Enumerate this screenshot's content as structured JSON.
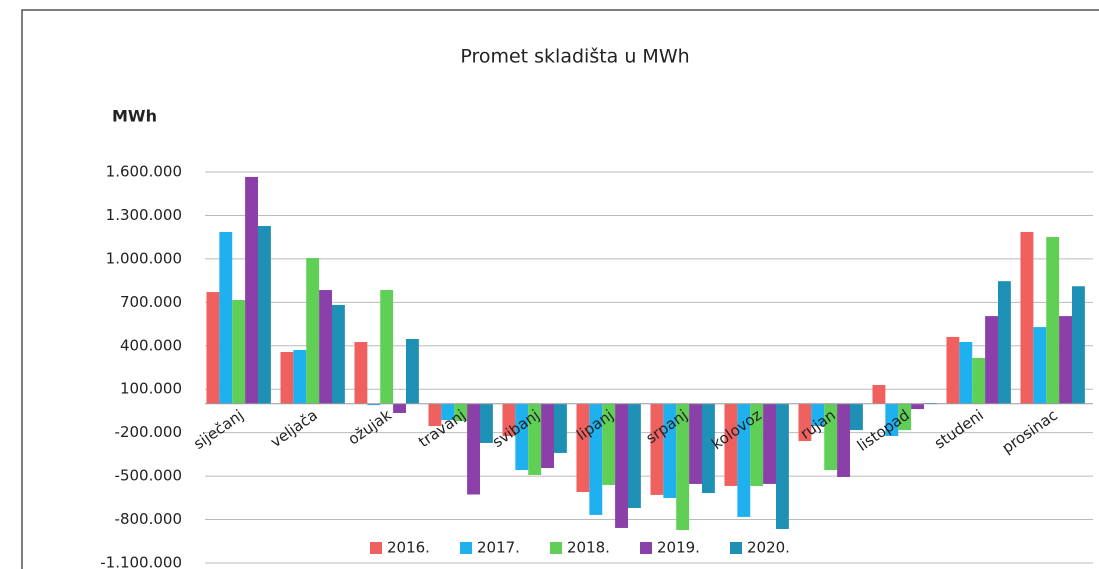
{
  "chart_data": {
    "type": "bar",
    "title": "Promet skladišta u MWh",
    "y_label": "MWh",
    "categories": [
      "siječanj",
      "veljača",
      "ožujak",
      "travanj",
      "svibanj",
      "lipanj",
      "srpanj",
      "kolovoz",
      "rujan",
      "listopad",
      "studeni",
      "prosinac"
    ],
    "series": [
      {
        "name": "2016.",
        "color": "#f0605e",
        "values": [
          771000,
          357000,
          426000,
          -154000,
          -223000,
          -610000,
          -630000,
          -568000,
          -258000,
          129000,
          461000,
          1186000
        ]
      },
      {
        "name": "2017.",
        "color": "#1fb0f0",
        "values": [
          1186000,
          371000,
          -10000,
          -113000,
          -458000,
          -768000,
          -651000,
          -782000,
          -154000,
          -223000,
          426000,
          529000
        ]
      },
      {
        "name": "2018.",
        "color": "#5fcf55",
        "values": [
          716000,
          1006000,
          785000,
          -120000,
          -492000,
          -561000,
          -872000,
          -568000,
          -458000,
          -182000,
          316000,
          1151000
        ]
      },
      {
        "name": "2019.",
        "color": "#8b3fa8",
        "values": [
          1566000,
          785000,
          -64000,
          -627000,
          -444000,
          -858000,
          -554000,
          -554000,
          -506000,
          -37000,
          605000,
          605000
        ]
      },
      {
        "name": "2020.",
        "color": "#1e8fb5",
        "values": [
          1227000,
          682000,
          447000,
          -271000,
          -340000,
          -720000,
          -617000,
          -865000,
          -182000,
          5000,
          846000,
          811000
        ]
      }
    ],
    "ylim": [
      -1100000,
      1600000
    ],
    "yticks": [
      {
        "value": 1600000,
        "label": "1.600.000"
      },
      {
        "value": 1300000,
        "label": "1.300.000"
      },
      {
        "value": 1000000,
        "label": "1.000.000"
      },
      {
        "value": 700000,
        "label": "700.000"
      },
      {
        "value": 400000,
        "label": "400.000"
      },
      {
        "value": 100000,
        "label": "100.000"
      },
      {
        "value": -200000,
        "label": "-200.000"
      },
      {
        "value": -500000,
        "label": "-500.000"
      },
      {
        "value": -800000,
        "label": "-800.000"
      },
      {
        "value": -1100000,
        "label": "-1.100.000"
      }
    ],
    "grid": true
  }
}
